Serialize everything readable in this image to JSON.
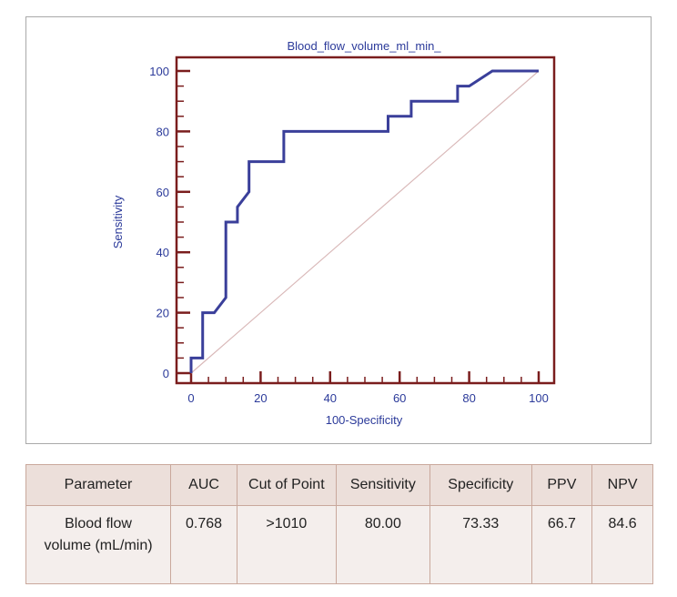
{
  "chart_data": {
    "type": "line",
    "title": "Blood_flow_volume_ml_min_",
    "xlabel": "100-Specificity",
    "ylabel": "Sensitivity",
    "xlim": [
      0,
      100
    ],
    "ylim": [
      0,
      100
    ],
    "xticks": [
      0,
      20,
      40,
      60,
      80,
      100
    ],
    "yticks": [
      0,
      20,
      40,
      60,
      80,
      100
    ],
    "grid": false,
    "series": [
      {
        "color": "#3a3f9a",
        "x": [
          0,
          0,
          3.33,
          3.33,
          6.67,
          10,
          10,
          13.33,
          13.33,
          16.67,
          16.67,
          26.67,
          26.67,
          56.67,
          56.67,
          63.33,
          63.33,
          76.67,
          76.67,
          80,
          86.67,
          100
        ],
        "y": [
          0,
          5,
          5,
          20,
          20,
          25,
          50,
          50,
          55,
          60,
          70,
          70,
          80,
          80,
          85,
          85,
          90,
          90,
          95,
          95,
          100,
          100
        ]
      },
      {
        "color": "#d9b8b8",
        "x": [
          0,
          100
        ],
        "y": [
          0,
          100
        ]
      }
    ]
  },
  "table": {
    "headers": [
      "Parameter",
      "AUC",
      "Cut of Point",
      "Sensitivity",
      "Specificity",
      "PPV",
      "NPV"
    ],
    "rows": [
      [
        "Blood flow volume (mL/min)",
        "0.768",
        ">1010",
        "80.00",
        "73.33",
        "66.7",
        "84.6"
      ]
    ]
  },
  "colors": {
    "axis": "#7a1d1d",
    "curve": "#3a3f9a",
    "text": "#2b3a9a",
    "header_bg": "#ecdfda",
    "cell_bg": "#f4eeec"
  }
}
